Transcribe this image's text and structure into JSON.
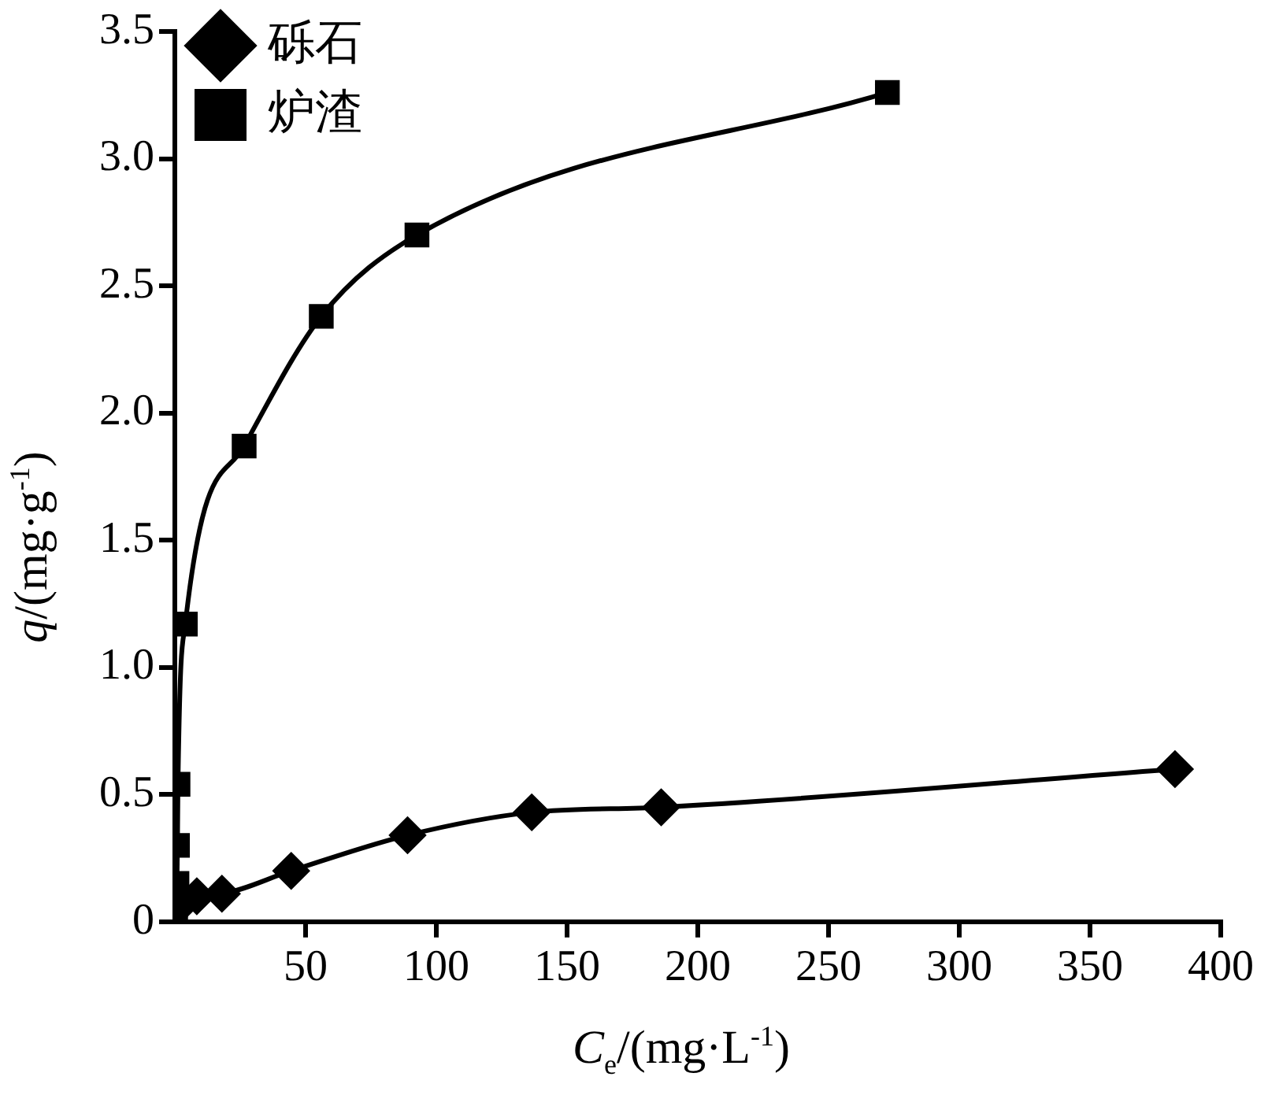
{
  "chart_data": {
    "type": "line",
    "xlabel": "C$_{e}$/(mg·L$^{-1}$)",
    "ylabel": "q/(mg·g$^{-1}$)",
    "xlim": [
      0,
      400
    ],
    "xticks": [
      50,
      100,
      150,
      200,
      250,
      300,
      350,
      400
    ],
    "ylim": [
      0,
      3.5
    ],
    "yticks": [
      0,
      0.5,
      {
        "value": 1,
        "label": "1.0"
      },
      1.5,
      {
        "value": 2,
        "label": "2.0"
      },
      2.5,
      {
        "value": 3,
        "label": "3.0"
      },
      3.5
    ],
    "legend": "top left",
    "grid": false,
    "series": [
      {
        "name": "砾石",
        "color": "#000000",
        "marker": "diamond",
        "x": [
          0.6,
          8.4,
          18,
          44.5,
          89,
          136.5,
          186,
          382.5
        ],
        "values": [
          0.05,
          0.1,
          0.11,
          0.2,
          0.34,
          0.43,
          0.45,
          0.6
        ]
      },
      {
        "name": "炉渣",
        "color": "#000000",
        "marker": "square",
        "x": [
          0.3,
          0.5,
          0.8,
          1,
          1.2,
          4,
          26.5,
          56,
          92.6,
          272.5
        ],
        "values": [
          0.05,
          0.1,
          0.15,
          0.3,
          0.54,
          1.17,
          1.87,
          2.38,
          2.7,
          3.26
        ]
      }
    ]
  }
}
